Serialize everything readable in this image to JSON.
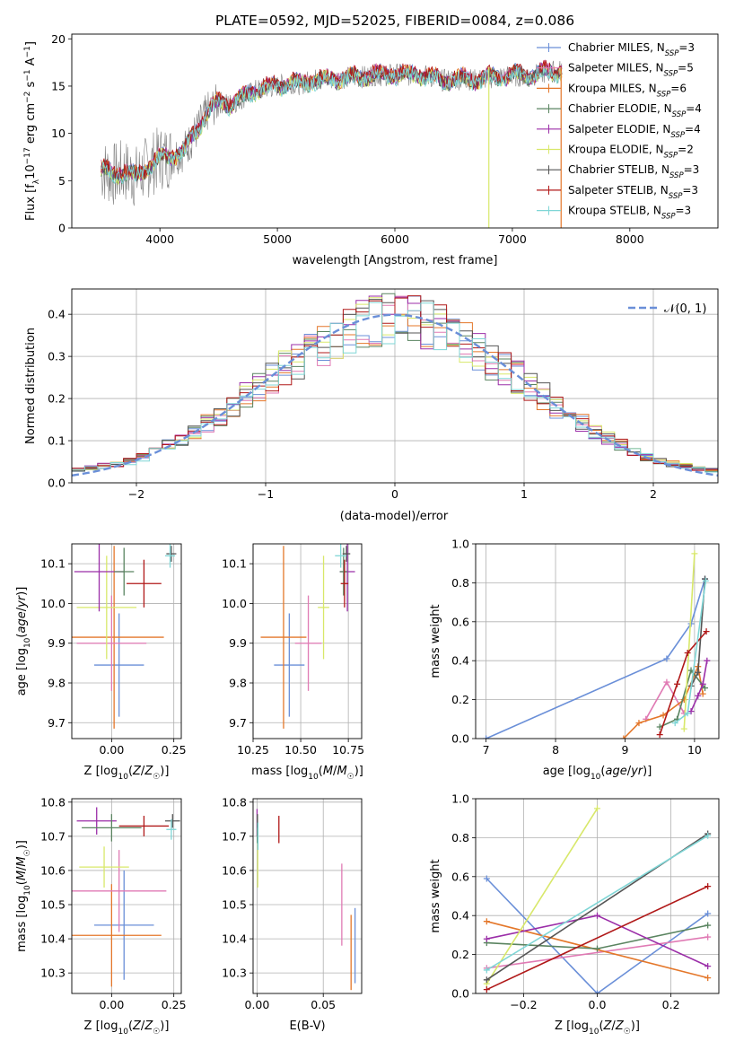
{
  "figure": {
    "title": "PLATE=0592, MJD=52025, FIBERID=0084, z=0.086"
  },
  "colors": {
    "Chabrier MILES": "#6a8fd8",
    "Salpeter MILES": "#e07ab4",
    "Kroupa MILES": "#e4772a",
    "Chabrier ELODIE": "#5a8460",
    "Salpeter ELODIE": "#9b2ea8",
    "Kroupa ELODIE": "#d8e86a",
    "Chabrier STELIB": "#555555",
    "Salpeter STELIB": "#b01818",
    "Kroupa STELIB": "#7fd6d6"
  },
  "chart_data": [
    {
      "id": "spectrum",
      "type": "line",
      "xlabel": "wavelength [Angstrom, rest frame]",
      "ylabel": "Flux [f_λ 10^-17 erg cm^-2 s^-1 A^-1]",
      "xlim": [
        3250,
        8750
      ],
      "ylim": [
        0,
        20.5
      ],
      "xticks": [
        4000,
        5000,
        6000,
        7000,
        8000
      ],
      "yticks": [
        0,
        5,
        10,
        15,
        20
      ],
      "grid": false,
      "legend_position": "top-right",
      "data": {
        "x": [
          3500,
          3600,
          3700,
          3800,
          3900,
          4000,
          4100,
          4200,
          4300,
          4400,
          4500,
          4600,
          4700,
          4800,
          4900,
          5000,
          5100,
          5200,
          5300,
          5400,
          5500,
          5600,
          5700,
          5800,
          5900,
          6000,
          6100,
          6200,
          6300,
          6400,
          6500,
          6600,
          6700,
          6800,
          6900,
          7000,
          7100,
          7200,
          7300,
          7400
        ],
        "y": [
          6.2,
          5.6,
          6.0,
          5.4,
          6.5,
          7.4,
          7.6,
          8.1,
          10.0,
          12.2,
          13.3,
          13.1,
          13.7,
          14.5,
          14.8,
          15.0,
          15.4,
          15.2,
          15.7,
          15.6,
          15.8,
          15.9,
          15.9,
          16.2,
          16.1,
          16.3,
          16.1,
          16.3,
          16.0,
          15.6,
          15.7,
          15.8,
          15.6,
          15.9,
          16.0,
          16.1,
          16.1,
          16.2,
          16.5,
          16.6
        ]
      },
      "series": [
        {
          "name": "Chabrier MILES, N_SSP=3",
          "label_main": "Chabrier MILES, N",
          "label_sub": "SSP",
          "label_tail": "=3",
          "color": "#6a8fd8",
          "offset": 0.1
        },
        {
          "name": "Salpeter MILES, N_SSP=5",
          "label_main": "Salpeter MILES, N",
          "label_sub": "SSP",
          "label_tail": "=5",
          "color": "#e07ab4",
          "offset": 0.15
        },
        {
          "name": "Kroupa MILES, N_SSP=6",
          "label_main": "Kroupa MILES, N",
          "label_sub": "SSP",
          "label_tail": "=6",
          "color": "#e4772a",
          "offset": 0.05
        },
        {
          "name": "Chabrier ELODIE, N_SSP=4",
          "label_main": "Chabrier ELODIE, N",
          "label_sub": "SSP",
          "label_tail": "=4",
          "color": "#5a8460",
          "offset": -0.1
        },
        {
          "name": "Salpeter ELODIE, N_SSP=4",
          "label_main": "Salpeter ELODIE, N",
          "label_sub": "SSP",
          "label_tail": "=4",
          "color": "#9b2ea8",
          "offset": 0.0
        },
        {
          "name": "Kroupa ELODIE, N_SSP=2",
          "label_main": "Kroupa ELODIE, N",
          "label_sub": "SSP",
          "label_tail": "=2",
          "color": "#d8e86a",
          "offset": -0.05
        },
        {
          "name": "Chabrier STELIB, N_SSP=3",
          "label_main": "Chabrier STELIB, N",
          "label_sub": "SSP",
          "label_tail": "=3",
          "color": "#555555",
          "offset": 0.0
        },
        {
          "name": "Salpeter STELIB, N_SSP=3",
          "label_main": "Salpeter STELIB, N",
          "label_sub": "SSP",
          "label_tail": "=3",
          "color": "#b01818",
          "offset": 0.2
        },
        {
          "name": "Kroupa STELIB, N_SSP=3",
          "label_main": "Kroupa STELIB, N",
          "label_sub": "SSP",
          "label_tail": "=3",
          "color": "#7fd6d6",
          "offset": -0.15
        }
      ]
    },
    {
      "id": "residuals",
      "type": "histogram",
      "xlabel": "(data-model)/error",
      "ylabel": "Normed distribution",
      "xlim": [
        -2.5,
        2.5
      ],
      "ylim": [
        0,
        0.46
      ],
      "xticks": [
        -2,
        -1,
        0,
        1,
        2
      ],
      "xticklabels": [
        "−2",
        "−1",
        "0",
        "1",
        "2"
      ],
      "yticks": [
        0.0,
        0.1,
        0.2,
        0.3,
        0.4
      ],
      "grid": true,
      "legend_position": "top-right",
      "legend": "𝒩(0, 1)",
      "bin_width": 0.1,
      "base_values": [
        0.03,
        0.035,
        0.04,
        0.045,
        0.05,
        0.06,
        0.075,
        0.09,
        0.105,
        0.12,
        0.14,
        0.16,
        0.18,
        0.205,
        0.225,
        0.25,
        0.27,
        0.29,
        0.31,
        0.33,
        0.345,
        0.36,
        0.375,
        0.385,
        0.39,
        0.395,
        0.385,
        0.375,
        0.365,
        0.35,
        0.33,
        0.31,
        0.29,
        0.27,
        0.25,
        0.225,
        0.205,
        0.18,
        0.16,
        0.14,
        0.12,
        0.105,
        0.09,
        0.075,
        0.06,
        0.05,
        0.045,
        0.04,
        0.035,
        0.03
      ],
      "gaussian": {
        "mean": 0,
        "sigma": 1,
        "color": "#6a8fd8"
      }
    },
    {
      "id": "age-vs-Z",
      "type": "errorbar",
      "xlabel": "Z [log10(Z/Z☉)]",
      "ylabel": "age [log10(age/yr)]",
      "xlim": [
        -0.16,
        0.28
      ],
      "ylim": [
        9.66,
        10.15
      ],
      "xticks": [
        0.0,
        0.25
      ],
      "xticklabels": [
        "0.00",
        "0.25"
      ],
      "yticks": [
        9.7,
        9.8,
        9.9,
        10.0,
        10.1
      ],
      "grid": true,
      "points": [
        {
          "color": "#6a8fd8",
          "x": 0.03,
          "y": 9.845,
          "xerr": 0.1,
          "yerr": 0.13
        },
        {
          "color": "#e4772a",
          "x": 0.01,
          "y": 9.915,
          "xerr": 0.2,
          "yerr": 0.23
        },
        {
          "color": "#e07ab4",
          "x": 0.0,
          "y": 9.9,
          "xerr": 0.14,
          "yerr": 0.12
        },
        {
          "color": "#d8e86a",
          "x": -0.02,
          "y": 9.99,
          "xerr": 0.12,
          "yerr": 0.13
        },
        {
          "color": "#9b2ea8",
          "x": -0.05,
          "y": 10.08,
          "xerr": 0.1,
          "yerr": 0.1
        },
        {
          "color": "#5a8460",
          "x": 0.05,
          "y": 10.08,
          "xerr": 0.04,
          "yerr": 0.06
        },
        {
          "color": "#b01818",
          "x": 0.13,
          "y": 10.05,
          "xerr": 0.07,
          "yerr": 0.06
        },
        {
          "color": "#555555",
          "x": 0.24,
          "y": 10.125,
          "xerr": 0.02,
          "yerr": 0.02
        },
        {
          "color": "#7fd6d6",
          "x": 0.235,
          "y": 10.12,
          "xerr": 0.02,
          "yerr": 0.03
        }
      ]
    },
    {
      "id": "age-vs-mass",
      "type": "errorbar",
      "xlabel": "mass [log10(M/M☉)]",
      "ylabel": "",
      "xlim": [
        10.25,
        10.82
      ],
      "ylim": [
        9.66,
        10.15
      ],
      "xticks": [
        10.25,
        10.5,
        10.75
      ],
      "xticklabels": [
        "10.25",
        "10.50",
        "10.75"
      ],
      "yticks": [
        9.7,
        9.8,
        9.9,
        10.0,
        10.1
      ],
      "grid": true,
      "points": [
        {
          "color": "#6a8fd8",
          "x": 10.44,
          "y": 9.845,
          "xerr": 0.08,
          "yerr": 0.13
        },
        {
          "color": "#e4772a",
          "x": 10.41,
          "y": 9.915,
          "xerr": 0.12,
          "yerr": 0.23
        },
        {
          "color": "#e07ab4",
          "x": 10.54,
          "y": 9.9,
          "xerr": 0.07,
          "yerr": 0.12
        },
        {
          "color": "#d8e86a",
          "x": 10.62,
          "y": 9.99,
          "xerr": 0.03,
          "yerr": 0.13
        },
        {
          "color": "#9b2ea8",
          "x": 10.745,
          "y": 10.08,
          "xerr": 0.04,
          "yerr": 0.1
        },
        {
          "color": "#5a8460",
          "x": 10.725,
          "y": 10.08,
          "xerr": 0.02,
          "yerr": 0.06
        },
        {
          "color": "#b01818",
          "x": 10.73,
          "y": 10.05,
          "xerr": 0.02,
          "yerr": 0.06
        },
        {
          "color": "#555555",
          "x": 10.74,
          "y": 10.125,
          "xerr": 0.02,
          "yerr": 0.02
        },
        {
          "color": "#7fd6d6",
          "x": 10.71,
          "y": 10.12,
          "xerr": 0.03,
          "yerr": 0.03
        }
      ]
    },
    {
      "id": "weight-vs-age",
      "type": "line",
      "xlabel": "age [log10(age/yr)]",
      "ylabel": "mass weight",
      "xlim": [
        6.85,
        10.35
      ],
      "ylim": [
        0,
        1
      ],
      "xticks": [
        7,
        8,
        9,
        10
      ],
      "yticks": [
        0.0,
        0.2,
        0.4,
        0.6,
        0.8,
        1.0
      ],
      "grid": true,
      "series": [
        {
          "color": "#6a8fd8",
          "x": [
            7.0,
            9.6,
            9.95,
            10.15
          ],
          "y": [
            0.0,
            0.41,
            0.59,
            0.82
          ]
        },
        {
          "color": "#e07ab4",
          "x": [
            9.3,
            9.6,
            9.85
          ],
          "y": [
            0.1,
            0.29,
            0.13
          ]
        },
        {
          "color": "#e4772a",
          "x": [
            8.98,
            9.2,
            9.55,
            9.85,
            10.05,
            10.12
          ],
          "y": [
            0.0,
            0.08,
            0.12,
            0.2,
            0.37,
            0.23
          ]
        },
        {
          "color": "#5a8460",
          "x": [
            9.5,
            9.75,
            9.95,
            10.15
          ],
          "y": [
            0.06,
            0.1,
            0.35,
            0.26
          ]
        },
        {
          "color": "#9b2ea8",
          "x": [
            9.95,
            10.05,
            10.12,
            10.18
          ],
          "y": [
            0.14,
            0.22,
            0.28,
            0.4
          ]
        },
        {
          "color": "#d8e86a",
          "x": [
            9.85,
            10.0
          ],
          "y": [
            0.05,
            0.95
          ]
        },
        {
          "color": "#555555",
          "x": [
            9.95,
            10.05,
            10.15
          ],
          "y": [
            0.27,
            0.34,
            0.82
          ]
        },
        {
          "color": "#b01818",
          "x": [
            9.5,
            9.75,
            9.9,
            10.17
          ],
          "y": [
            0.02,
            0.28,
            0.44,
            0.55
          ]
        },
        {
          "color": "#7fd6d6",
          "x": [
            9.72,
            9.9,
            10.16
          ],
          "y": [
            0.08,
            0.13,
            0.81
          ]
        }
      ]
    },
    {
      "id": "mass-vs-Z",
      "type": "errorbar",
      "xlabel": "Z [log10(Z/Z☉)]",
      "ylabel": "mass [log10(M/M☉)]",
      "xlim": [
        -0.16,
        0.28
      ],
      "ylim": [
        10.24,
        10.81
      ],
      "xticks": [
        0.0,
        0.25
      ],
      "xticklabels": [
        "0.00",
        "0.25"
      ],
      "yticks": [
        10.3,
        10.4,
        10.5,
        10.6,
        10.7,
        10.8
      ],
      "grid": true,
      "points": [
        {
          "color": "#6a8fd8",
          "x": 0.05,
          "y": 10.44,
          "xerr": 0.12,
          "yerr": 0.16
        },
        {
          "color": "#e4772a",
          "x": 0.0,
          "y": 10.41,
          "xerr": 0.2,
          "yerr": 0.15
        },
        {
          "color": "#e07ab4",
          "x": 0.03,
          "y": 10.54,
          "xerr": 0.19,
          "yerr": 0.12
        },
        {
          "color": "#d8e86a",
          "x": -0.03,
          "y": 10.61,
          "xerr": 0.1,
          "yerr": 0.06
        },
        {
          "color": "#9b2ea8",
          "x": -0.06,
          "y": 10.745,
          "xerr": 0.08,
          "yerr": 0.04
        },
        {
          "color": "#5a8460",
          "x": 0.0,
          "y": 10.725,
          "xerr": 0.12,
          "yerr": 0.04
        },
        {
          "color": "#b01818",
          "x": 0.13,
          "y": 10.73,
          "xerr": 0.1,
          "yerr": 0.03
        },
        {
          "color": "#555555",
          "x": 0.245,
          "y": 10.745,
          "xerr": 0.03,
          "yerr": 0.02
        },
        {
          "color": "#7fd6d6",
          "x": 0.24,
          "y": 10.72,
          "xerr": 0.02,
          "yerr": 0.03
        }
      ]
    },
    {
      "id": "mass-vs-ebv",
      "type": "errorbar",
      "xlabel": "E(B-V)",
      "ylabel": "",
      "xlim": [
        -0.003,
        0.079
      ],
      "ylim": [
        10.24,
        10.81
      ],
      "xticks": [
        0.0,
        0.05
      ],
      "xticklabels": [
        "0.00",
        "0.05"
      ],
      "yticks": [
        10.3,
        10.4,
        10.5,
        10.6,
        10.7,
        10.8
      ],
      "grid": true,
      "points": [
        {
          "color": "#6a8fd8",
          "x": 0.074,
          "y": 10.38,
          "xerr": 0.0,
          "yerr": 0.11
        },
        {
          "color": "#e4772a",
          "x": 0.071,
          "y": 10.36,
          "xerr": 0.0,
          "yerr": 0.11
        },
        {
          "color": "#e07ab4",
          "x": 0.064,
          "y": 10.5,
          "xerr": 0.0,
          "yerr": 0.12
        },
        {
          "color": "#d8e86a",
          "x": 0.0005,
          "y": 10.62,
          "xerr": 0.0,
          "yerr": 0.07
        },
        {
          "color": "#9b2ea8",
          "x": 0.0,
          "y": 10.74,
          "xerr": 0.0,
          "yerr": 0.04
        },
        {
          "color": "#5a8460",
          "x": 0.0002,
          "y": 10.72,
          "xerr": 0.0,
          "yerr": 0.04
        },
        {
          "color": "#b01818",
          "x": 0.0165,
          "y": 10.72,
          "xerr": 0.0,
          "yerr": 0.04
        },
        {
          "color": "#555555",
          "x": 0.0003,
          "y": 10.745,
          "xerr": 0.0,
          "yerr": 0.02
        },
        {
          "color": "#7fd6d6",
          "x": 0.0007,
          "y": 10.7,
          "xerr": 0.0,
          "yerr": 0.04
        }
      ]
    },
    {
      "id": "weight-vs-Z",
      "type": "line",
      "xlabel": "Z [log10(Z/Z☉)]",
      "ylabel": "mass weight",
      "xlim": [
        -0.33,
        0.33
      ],
      "ylim": [
        0,
        1
      ],
      "xticks": [
        -0.2,
        0.0,
        0.2
      ],
      "xticklabels": [
        "−0.2",
        "0.0",
        "0.2"
      ],
      "yticks": [
        0.0,
        0.2,
        0.4,
        0.6,
        0.8,
        1.0
      ],
      "grid": true,
      "series": [
        {
          "color": "#6a8fd8",
          "x": [
            -0.3,
            0.0,
            0.3
          ],
          "y": [
            0.59,
            0.0,
            0.41
          ]
        },
        {
          "color": "#e07ab4",
          "x": [
            -0.3,
            0.3
          ],
          "y": [
            0.13,
            0.29
          ]
        },
        {
          "color": "#e4772a",
          "x": [
            -0.3,
            0.3
          ],
          "y": [
            0.37,
            0.08
          ]
        },
        {
          "color": "#5a8460",
          "x": [
            -0.3,
            0.0,
            0.3
          ],
          "y": [
            0.26,
            0.23,
            0.35
          ]
        },
        {
          "color": "#9b2ea8",
          "x": [
            -0.3,
            0.0,
            0.3
          ],
          "y": [
            0.28,
            0.4,
            0.14
          ]
        },
        {
          "color": "#d8e86a",
          "x": [
            -0.3,
            0.0
          ],
          "y": [
            0.05,
            0.95
          ]
        },
        {
          "color": "#555555",
          "x": [
            -0.3,
            0.3
          ],
          "y": [
            0.07,
            0.82
          ]
        },
        {
          "color": "#b01818",
          "x": [
            -0.3,
            0.3
          ],
          "y": [
            0.02,
            0.55
          ]
        },
        {
          "color": "#7fd6d6",
          "x": [
            -0.3,
            0.3
          ],
          "y": [
            0.12,
            0.81
          ]
        }
      ]
    }
  ]
}
